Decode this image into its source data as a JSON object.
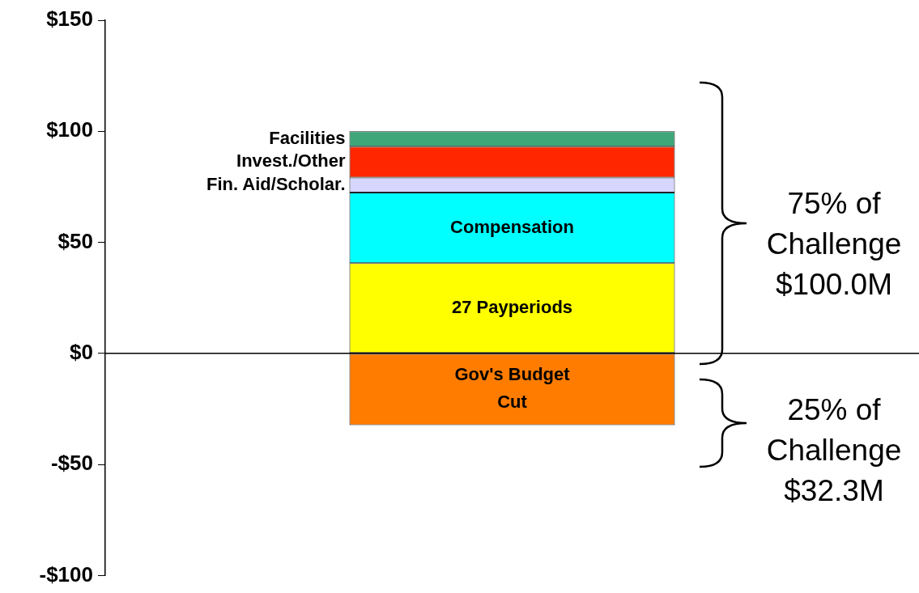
{
  "chart_data": {
    "type": "bar",
    "stacked": true,
    "categories": [
      null
    ],
    "ylim": [
      -100,
      150
    ],
    "yticks": [
      {
        "value": -100,
        "label": "-$100"
      },
      {
        "value": -50,
        "label": "-$50"
      },
      {
        "value": 0,
        "label": "$0"
      },
      {
        "value": 50,
        "label": "$50"
      },
      {
        "value": 100,
        "label": "$100"
      },
      {
        "value": 150,
        "label": "$150"
      }
    ],
    "grid": false,
    "legend": false,
    "ref_lines": [
      {
        "axis": "y",
        "value": 0,
        "color": "#000000"
      }
    ],
    "series": [
      {
        "name": "27 Payperiods",
        "color": "#ffff00",
        "values": [
          40.6
        ]
      },
      {
        "name": "Compensation",
        "color": "#00ffff",
        "values": [
          31.8
        ]
      },
      {
        "name": "Fin. Aid/Scholar.",
        "color": "#d6d6ff",
        "values": [
          6.8
        ]
      },
      {
        "name": "Invest./Other",
        "color": "#ff2600",
        "values": [
          13.9
        ]
      },
      {
        "name": "Facilities",
        "color": "#3ea679",
        "values": [
          6.9
        ]
      },
      {
        "name": "Gov's Budget\nCut",
        "color": "#ff7c00",
        "values": [
          -32.3
        ]
      }
    ],
    "annotations": [
      "75% of\nChallenge\n$100.0M",
      "25% of\nChallenge\n$32.3M"
    ]
  }
}
